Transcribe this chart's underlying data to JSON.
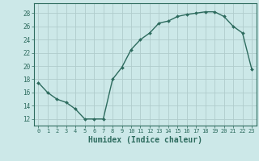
{
  "x": [
    0,
    1,
    2,
    3,
    4,
    5,
    6,
    7,
    8,
    9,
    10,
    11,
    12,
    13,
    14,
    15,
    16,
    17,
    18,
    19,
    20,
    21,
    22,
    23
  ],
  "y": [
    17.5,
    16.0,
    15.0,
    14.5,
    13.5,
    12.0,
    12.0,
    12.0,
    18.0,
    19.8,
    22.5,
    24.0,
    25.0,
    26.5,
    26.8,
    27.5,
    27.8,
    28.0,
    28.2,
    28.2,
    27.5,
    26.0,
    25.0,
    19.5
  ],
  "line_color": "#2d6b5e",
  "marker": "D",
  "marker_size": 2.0,
  "bg_color": "#cce8e8",
  "grid_color": "#b0cccc",
  "tick_color": "#2d6b5e",
  "xlabel": "Humidex (Indice chaleur)",
  "ylim": [
    11,
    29.5
  ],
  "xlim": [
    -0.5,
    23.5
  ],
  "yticks": [
    12,
    14,
    16,
    18,
    20,
    22,
    24,
    26,
    28
  ],
  "xticks": [
    0,
    1,
    2,
    3,
    4,
    5,
    6,
    7,
    8,
    9,
    10,
    11,
    12,
    13,
    14,
    15,
    16,
    17,
    18,
    19,
    20,
    21,
    22,
    23
  ]
}
